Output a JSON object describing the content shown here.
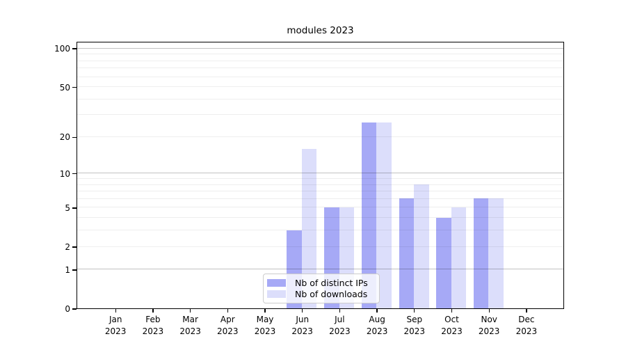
{
  "chart_data": {
    "type": "bar",
    "title": "modules 2023",
    "categories": [
      "Jan 2023",
      "Feb 2023",
      "Mar 2023",
      "Apr 2023",
      "May 2023",
      "Jun 2023",
      "Jul 2023",
      "Aug 2023",
      "Sep 2023",
      "Oct 2023",
      "Nov 2023",
      "Dec 2023"
    ],
    "series": [
      {
        "name": "Nb of distinct IPs",
        "color": "#a6a9f6",
        "values": [
          0,
          0,
          0,
          0,
          0,
          3,
          5,
          26,
          6,
          4,
          6,
          0
        ]
      },
      {
        "name": "Nb of downloads",
        "color": "#dcdefb",
        "values": [
          0,
          0,
          0,
          0,
          0,
          16,
          5,
          26,
          8,
          5,
          6,
          0
        ]
      }
    ],
    "xlabel": "",
    "ylabel": "",
    "yscale": "symlog-log1p",
    "ylim": [
      0,
      113.5
    ],
    "y_tick_values": [
      0,
      1,
      2,
      5,
      10,
      20,
      50,
      100
    ],
    "y_tick_labels": [
      "0",
      "1",
      "2",
      "5",
      "10",
      "20",
      "50",
      "100"
    ],
    "y_major_gridlines": [
      1,
      10,
      100
    ],
    "y_minor_gridlines": [
      2,
      3,
      4,
      5,
      6,
      7,
      8,
      9,
      20,
      30,
      40,
      50,
      60,
      70,
      80,
      90
    ],
    "grid": true,
    "legend_position": "lower center"
  },
  "legend": {
    "items": [
      {
        "label": "Nb of distinct IPs",
        "color": "#a6a9f6"
      },
      {
        "label": "Nb of downloads",
        "color": "#dcdefb"
      }
    ]
  },
  "colors": {
    "bar_distinct_ips": "#a6a9f6",
    "bar_downloads": "#dcdefb",
    "axis_frame": "#000000",
    "text": "#000000"
  }
}
